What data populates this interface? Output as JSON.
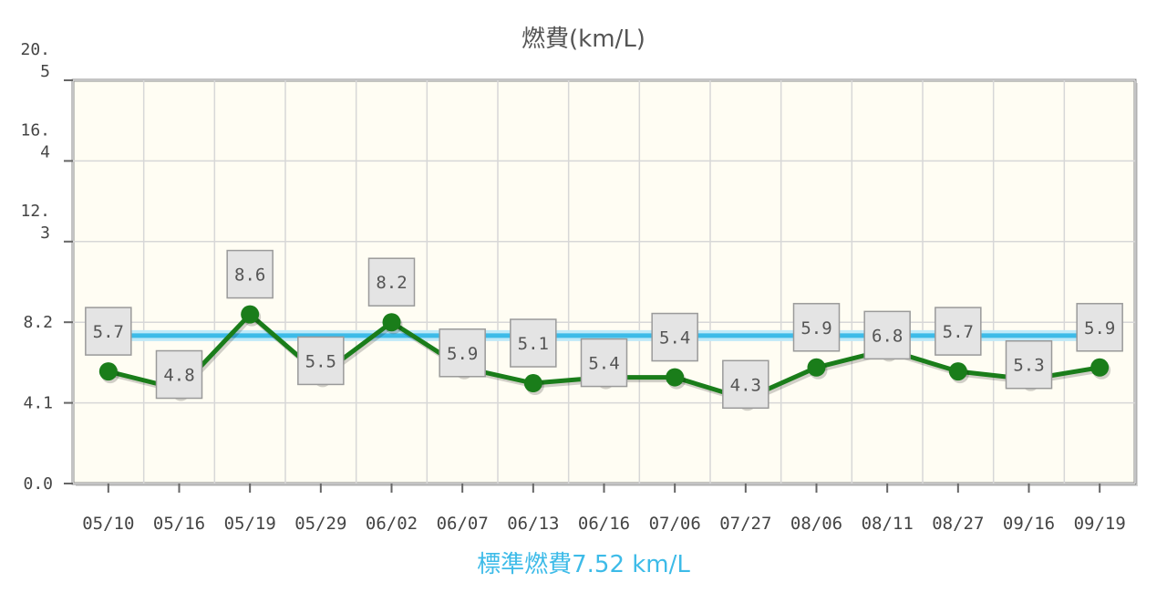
{
  "chart_data": {
    "type": "line",
    "title": "燃費(km/L)",
    "subtitle": "標準燃費7.52 km/L",
    "categories": [
      "05/10",
      "05/16",
      "05/19",
      "05/29",
      "06/02",
      "06/07",
      "06/13",
      "06/16",
      "07/06",
      "07/27",
      "08/06",
      "08/11",
      "08/27",
      "09/16",
      "09/19"
    ],
    "series": [
      {
        "values": [
          5.7,
          4.8,
          8.6,
          5.5,
          8.2,
          5.9,
          5.1,
          5.4,
          5.4,
          4.3,
          5.9,
          6.8,
          5.7,
          5.3,
          5.9
        ],
        "color": "#1a7d1a",
        "data_labels": [
          "5.7",
          "4.8",
          "8.6",
          "5.5",
          "8.2",
          "5.9",
          "5.1",
          "5.4",
          "5.4",
          "4.3",
          "5.9",
          "6.8",
          "5.7",
          "5.3",
          "5.9"
        ]
      }
    ],
    "reference_line": {
      "value": 7.52,
      "color": "#3dbbe8"
    },
    "ylim": [
      0,
      20.5
    ],
    "yticks": [
      {
        "value": 0,
        "label": "0.0"
      },
      {
        "value": 4.1,
        "label": "4.1"
      },
      {
        "value": 8.2,
        "label": "8.2"
      },
      {
        "value": 12.3,
        "label": "12.3"
      },
      {
        "value": 16.4,
        "label": "16.4"
      },
      {
        "value": 20.5,
        "label": "20.5"
      }
    ],
    "grid": true,
    "plot_background": "#fffdf3"
  }
}
